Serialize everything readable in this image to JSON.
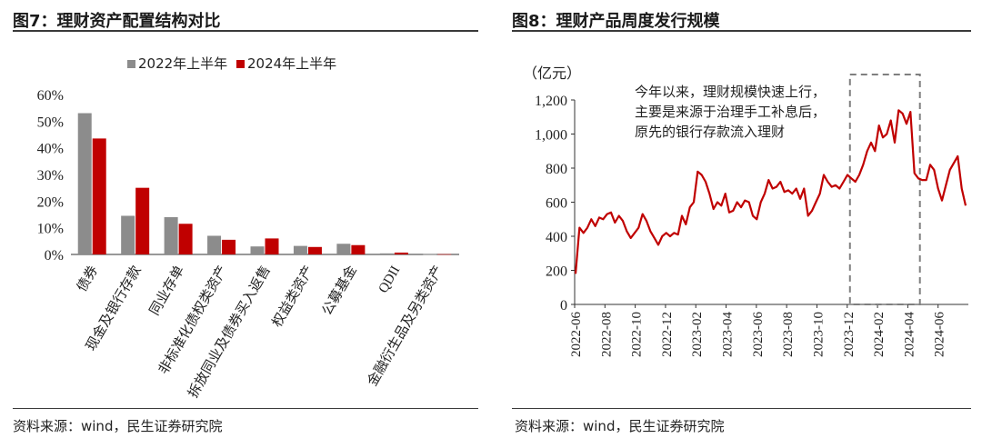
{
  "left": {
    "title": "图7：理财资产配置结构对比",
    "source": "资料来源：wind，民生证券研究院"
  },
  "right": {
    "title": "图8：理财产品周度发行规模",
    "source": "资料来源：wind，民生证券研究院"
  },
  "colors": {
    "gray": "#8c8c8c",
    "red": "#c00000",
    "axis": "#333333",
    "dash": "#7f7f7f"
  },
  "chart_data": [
    {
      "type": "bar",
      "categories": [
        "债券",
        "现金及银行存款",
        "同业存单",
        "非标准化债权类资产",
        "拆放同业及债券买入返售",
        "权益类资产",
        "公募基金",
        "QDII",
        "金融衍生品及另类资产"
      ],
      "series": [
        {
          "name": "2022年上半年",
          "values": [
            53.0,
            14.5,
            14.0,
            7.0,
            3.0,
            3.2,
            4.0,
            0.4,
            0.1
          ]
        },
        {
          "name": "2024年上半年",
          "values": [
            43.5,
            25.0,
            11.5,
            5.5,
            6.0,
            2.8,
            3.5,
            0.7,
            0.1
          ]
        }
      ],
      "yticks": [
        "60%",
        "50%",
        "40%",
        "30%",
        "20%",
        "10%",
        "0%"
      ],
      "ylim": [
        0,
        60
      ],
      "legend": "top"
    },
    {
      "type": "line",
      "ylabel": "（亿元）",
      "ylim": [
        0,
        1200
      ],
      "yticks": [
        "1,200",
        "1,000",
        "800",
        "600",
        "400",
        "200",
        "0"
      ],
      "xticks": [
        "2022-06",
        "2022-08",
        "2022-10",
        "2022-12",
        "2023-02",
        "2023-04",
        "2023-06",
        "2023-08",
        "2023-10",
        "2023-12",
        "2024-02",
        "2024-04",
        "2024-06"
      ],
      "annotation": [
        "今年以来，理财规模快速上行，",
        "主要是来源于治理手工补息后，",
        "原先的银行存款流入理财"
      ],
      "highlight": {
        "from": "2023-12",
        "to": "2024-04"
      },
      "x_start": "2022-06",
      "x_end": "2024-07",
      "values": [
        180,
        450,
        420,
        450,
        500,
        460,
        510,
        500,
        530,
        540,
        480,
        520,
        490,
        430,
        390,
        420,
        450,
        530,
        490,
        430,
        390,
        350,
        400,
        420,
        400,
        420,
        410,
        520,
        470,
        570,
        600,
        780,
        760,
        720,
        650,
        560,
        600,
        580,
        650,
        540,
        550,
        600,
        570,
        610,
        600,
        520,
        500,
        600,
        650,
        730,
        680,
        690,
        720,
        660,
        670,
        650,
        680,
        620,
        680,
        520,
        550,
        600,
        650,
        760,
        720,
        690,
        700,
        680,
        720,
        760,
        740,
        720,
        760,
        820,
        900,
        950,
        900,
        1050,
        980,
        1000,
        1080,
        950,
        1140,
        1120,
        1060,
        1130,
        770,
        740,
        730,
        730,
        820,
        790,
        680,
        610,
        700,
        790,
        830,
        870,
        680,
        580
      ]
    }
  ]
}
